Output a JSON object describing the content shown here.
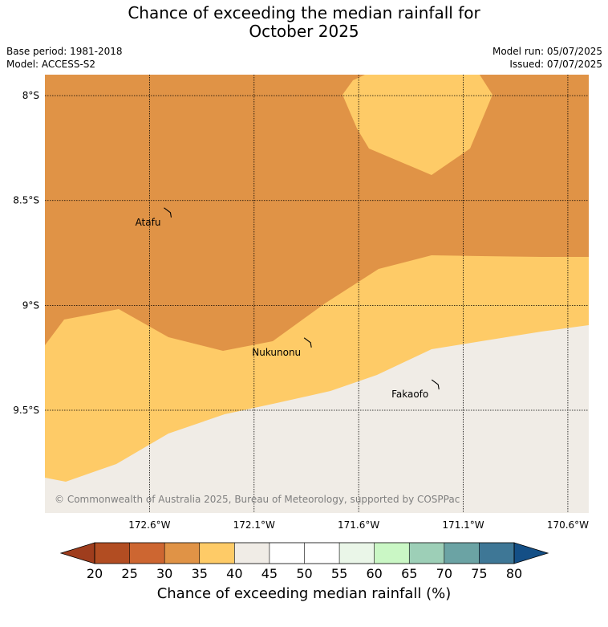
{
  "title_line1": "Chance of exceeding the median rainfall for",
  "title_line2": "October 2025",
  "base_period": "Base period: 1981-2018",
  "model": "Model: ACCESS-S2",
  "model_run": "Model run: 05/07/2025",
  "issued": "Issued: 07/07/2025",
  "copyright": "© Commonwealth of Australia 2025, Bureau of Meteorology, supported by COSPPac",
  "places": [
    {
      "name": "Atafu",
      "lon": -172.5,
      "lat": -8.55
    },
    {
      "name": "Nukunonu",
      "lon": -171.83,
      "lat": -9.17
    },
    {
      "name": "Fakaofo",
      "lon": -171.22,
      "lat": -9.37
    }
  ],
  "lat_ticks": [
    {
      "label": "8°S",
      "value": -8.0
    },
    {
      "label": "8.5°S",
      "value": -8.5
    },
    {
      "label": "9°S",
      "value": -9.0
    },
    {
      "label": "9.5°S",
      "value": -9.5
    }
  ],
  "lon_ticks": [
    {
      "label": "172.6°W",
      "value": -172.6
    },
    {
      "label": "172.1°W",
      "value": -172.1
    },
    {
      "label": "171.6°W",
      "value": -171.6
    },
    {
      "label": "171.1°W",
      "value": -171.1
    },
    {
      "label": "170.6°W",
      "value": -170.6
    }
  ],
  "extent": {
    "lon_min": -173.1,
    "lon_max": -170.5,
    "lat_min": -9.99,
    "lat_max": -7.9
  },
  "colorbar": {
    "title": "Chance of exceeding median rainfall (%)",
    "tick_labels": [
      "20",
      "25",
      "30",
      "35",
      "40",
      "45",
      "50",
      "55",
      "60",
      "65",
      "70",
      "75",
      "80"
    ],
    "colors": [
      "#b24d22",
      "#cd6631",
      "#e09346",
      "#fecb67",
      "#f0ece6",
      "#ffffff",
      "#ffffff",
      "#eaf6e8",
      "#caf7c5",
      "#9dcfb7",
      "#6ba3a4",
      "#3e7796"
    ],
    "under_color": "#9f3d1d",
    "over_color": "#144f86"
  },
  "categories": {
    "c30_35": "#e09346",
    "c35_40": "#fecb67",
    "c40_45": "#f0ece6"
  }
}
